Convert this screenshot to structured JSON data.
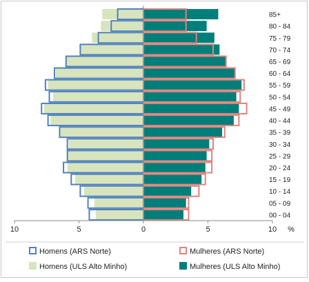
{
  "chart_data": {
    "type": "bar",
    "orientation": "horizontal-population-pyramid",
    "categories": [
      "00 - 04",
      "05 - 09",
      "10 - 14",
      "15 - 19",
      "20 - 24",
      "25 - 29",
      "30 - 34",
      "35 - 39",
      "40 - 44",
      "45 - 49",
      "50 - 54",
      "55 - 59",
      "60 - 64",
      "65 - 69",
      "70 - 74",
      "75 - 79",
      "80 - 84",
      "85+"
    ],
    "x_unit_label": "%",
    "x_ticks": [
      "10",
      "5",
      "0",
      "5",
      "10"
    ],
    "xlim": [
      -10,
      10
    ],
    "grid": false,
    "legend_position": "bottom",
    "series": [
      {
        "name": "Homens (ARS Norte)",
        "side": "left",
        "style": "outline",
        "color": "#4f81bd",
        "values": [
          4.2,
          4.3,
          4.9,
          5.6,
          6.2,
          5.9,
          5.9,
          6.5,
          7.4,
          7.9,
          7.3,
          7.6,
          6.9,
          6.0,
          4.9,
          3.5,
          2.5,
          2.0
        ]
      },
      {
        "name": "Mulheres (ARS Norte)",
        "side": "right",
        "style": "outline",
        "color": "#e0827c",
        "values": [
          3.5,
          3.5,
          4.3,
          4.8,
          5.3,
          5.3,
          5.4,
          6.3,
          7.4,
          8.0,
          7.5,
          7.8,
          7.1,
          6.4,
          5.4,
          4.1,
          3.3,
          3.3
        ]
      },
      {
        "name": "Homens (ULS Alto Minho)",
        "side": "left",
        "style": "fill",
        "color": "#d7e4bd",
        "values": [
          3.7,
          3.8,
          4.6,
          5.3,
          5.9,
          5.9,
          5.8,
          6.5,
          7.2,
          7.7,
          7.0,
          7.4,
          6.8,
          6.0,
          4.9,
          4.0,
          3.3,
          3.2
        ]
      },
      {
        "name": "Mulheres (ULS Alto Minho)",
        "side": "right",
        "style": "fill",
        "color": "#007f7a",
        "values": [
          3.1,
          3.3,
          3.7,
          4.5,
          4.8,
          4.9,
          5.1,
          6.1,
          7.0,
          7.4,
          7.2,
          7.6,
          7.1,
          6.4,
          5.9,
          5.5,
          4.9,
          5.8
        ]
      }
    ]
  }
}
